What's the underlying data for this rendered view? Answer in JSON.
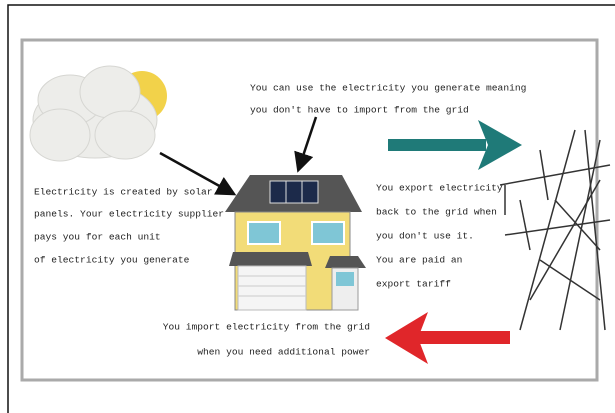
{
  "notes": [
    {
      "lines": [
        "You can use the electricity you generate meaning",
        "you don't have to import from the grid"
      ]
    },
    {
      "lines": [
        "Electricity is created by solar",
        "panels. Your electricity supplier",
        "pays you for each unit",
        "of electricity you generate"
      ]
    },
    {
      "lines": [
        "You export electricity",
        "back to the grid when",
        "you don't use it.",
        "You are paid an",
        "export tariff"
      ]
    },
    {
      "lines": [
        "You import electricity from the grid",
        "when you need additional power"
      ]
    }
  ]
}
